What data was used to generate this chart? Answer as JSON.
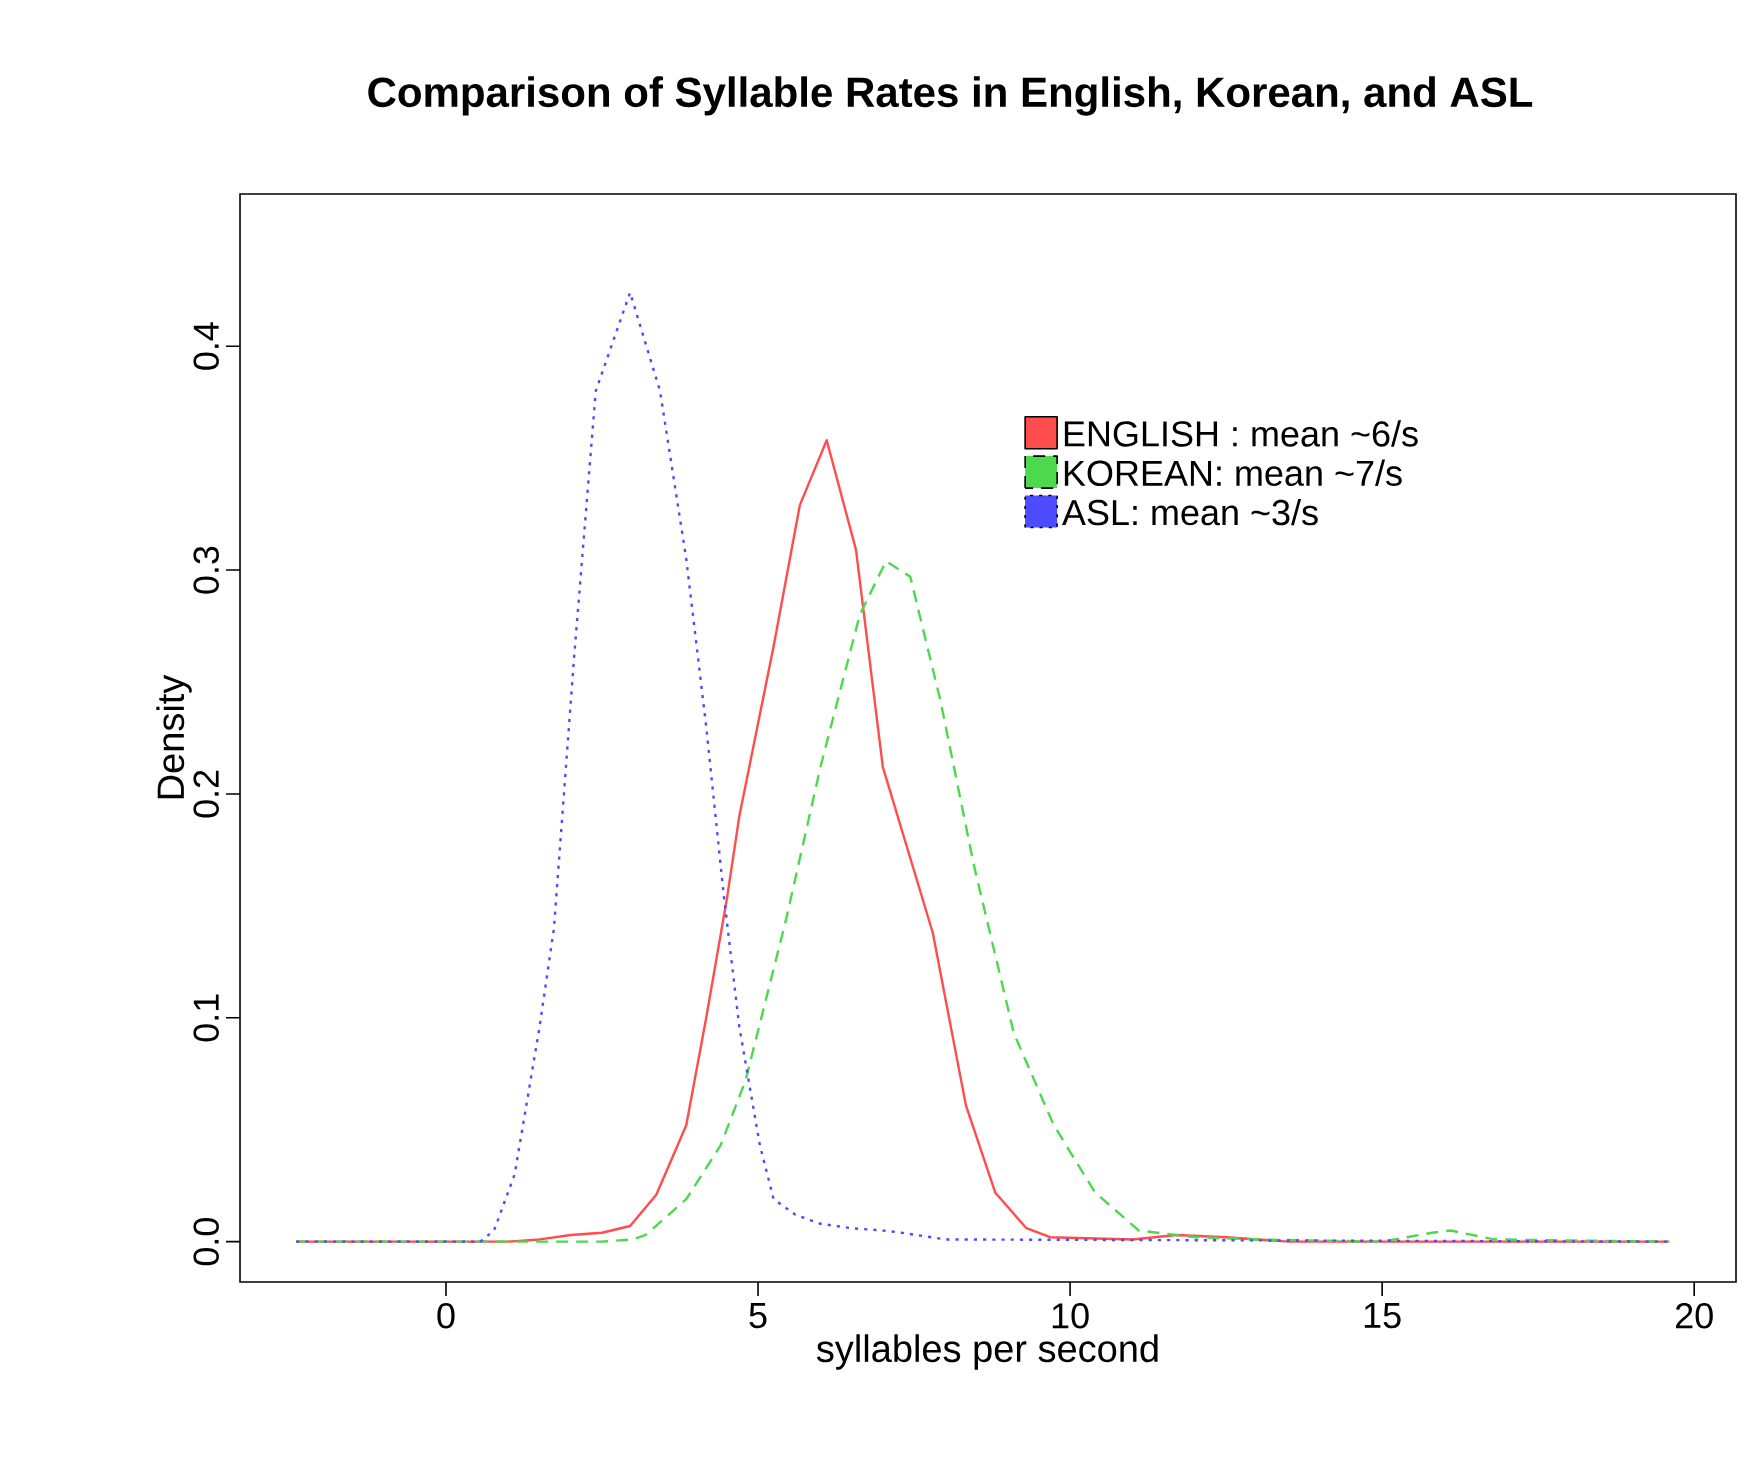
{
  "chart_data": {
    "type": "line",
    "title": "Comparison of Syllable Rates in English, Korean, and ASL",
    "xlabel": "syllables per second",
    "ylabel": "Density",
    "xlim": [
      -3.3,
      20.67
    ],
    "ylim": [
      -0.018,
      0.468
    ],
    "xticks": [
      0,
      5,
      10,
      15,
      20
    ],
    "yticks": [
      {
        "value": 0,
        "label": "0.0"
      },
      0.1,
      0.2,
      0.3,
      0.4
    ],
    "legend": "top right",
    "grid": false,
    "series": [
      {
        "name": "ENGLISH : mean ~6/s",
        "color": "#ff4d4d",
        "line_style": "solid",
        "x": [
          -2.4,
          1,
          1.5,
          2,
          2.5,
          2.95,
          3.37,
          3.85,
          4.17,
          4.5,
          4.7,
          5.25,
          5.67,
          6.1,
          6.57,
          7.0,
          7.8,
          8.33,
          8.8,
          9.3,
          9.68,
          11,
          11.7,
          12.5,
          13.5,
          19.6
        ],
        "values": [
          0,
          0,
          0.001,
          0.003,
          0.004,
          0.007,
          0.021,
          0.052,
          0.1,
          0.153,
          0.19,
          0.266,
          0.329,
          0.358,
          0.309,
          0.212,
          0.138,
          0.061,
          0.022,
          0.006,
          0.002,
          0.001,
          0.003,
          0.002,
          0,
          0
        ]
      },
      {
        "name": "KOREAN: mean ~7/s",
        "color": "#4dd94d",
        "line_style": "dashed",
        "x": [
          -2.4,
          2.5,
          3.0,
          3.2,
          3.85,
          4.4,
          4.8,
          5.45,
          6.0,
          6.63,
          7.05,
          7.44,
          7.92,
          8.46,
          9.1,
          9.74,
          10.4,
          11.1,
          12,
          13,
          15,
          15.8,
          16.1,
          16.8,
          19.6
        ],
        "values": [
          0,
          0,
          0.001,
          0.003,
          0.019,
          0.043,
          0.072,
          0.144,
          0.212,
          0.28,
          0.304,
          0.297,
          0.242,
          0.168,
          0.093,
          0.052,
          0.022,
          0.005,
          0.002,
          0.001,
          0,
          0.004,
          0.005,
          0.001,
          0
        ]
      },
      {
        "name": "ASL: mean ~3/s",
        "color": "#4d4dff",
        "line_style": "dotted",
        "x": [
          -2.4,
          0.55,
          0.77,
          1.1,
          1.5,
          1.73,
          2.05,
          2.4,
          2.95,
          3.43,
          3.85,
          4.17,
          4.45,
          4.7,
          5.03,
          5.25,
          5.6,
          6.0,
          6.5,
          7.0,
          7.3,
          8.0,
          19.6
        ],
        "values": [
          0,
          0,
          0.005,
          0.03,
          0.096,
          0.14,
          0.26,
          0.38,
          0.424,
          0.38,
          0.305,
          0.23,
          0.155,
          0.096,
          0.043,
          0.019,
          0.012,
          0.008,
          0.006,
          0.005,
          0.004,
          0.001,
          0
        ]
      }
    ]
  }
}
